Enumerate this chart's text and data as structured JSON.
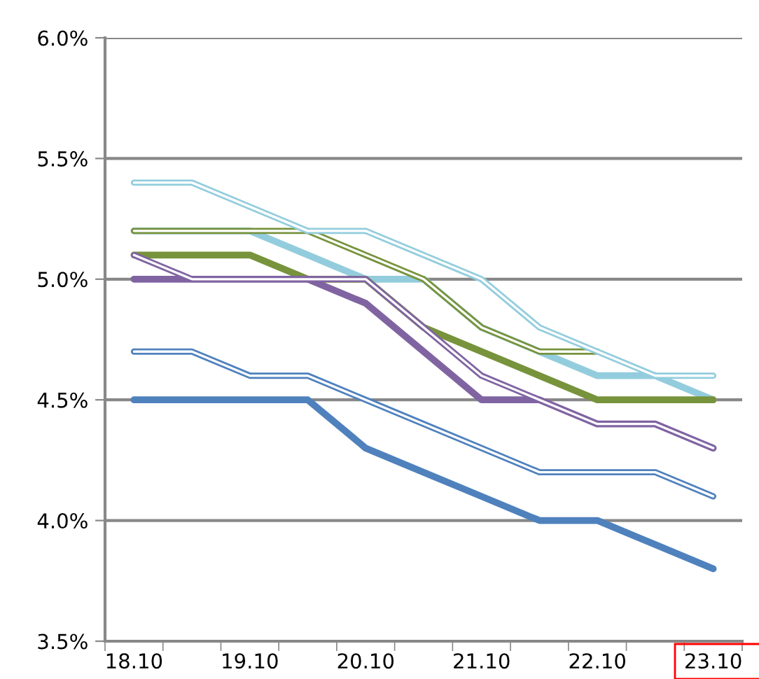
{
  "chart_data": {
    "type": "line",
    "categories": [
      "18.10",
      null,
      "19.10",
      null,
      "20.10",
      null,
      "21.10",
      null,
      "22.10",
      null,
      "23.10"
    ],
    "series": [
      {
        "color": "#93cddd",
        "values": [
          5.4,
          5.4,
          5.3,
          5.2,
          5.2,
          5.1,
          5.0,
          4.8,
          4.7,
          4.6,
          4.6
        ]
      },
      {
        "color": "#77933c",
        "values": [
          5.2,
          5.2,
          5.2,
          5.2,
          5.1,
          5.0,
          4.8,
          4.7,
          4.7,
          null,
          null
        ]
      },
      {
        "color": "#8064a2",
        "values": [
          5.1,
          5.0,
          5.0,
          5.0,
          5.0,
          4.8,
          4.6,
          4.5,
          4.4,
          4.4,
          4.3
        ]
      },
      {
        "color": "#4f81bd",
        "values": [
          4.7,
          4.7,
          4.6,
          4.6,
          4.5,
          4.4,
          4.3,
          4.2,
          4.2,
          4.2,
          4.1
        ]
      },
      {
        "color": "#93cddd",
        "values": [
          5.2,
          5.2,
          5.2,
          5.1,
          5.0,
          5.0,
          4.8,
          4.7,
          4.6,
          4.6,
          4.5
        ]
      },
      {
        "color": "#77933c",
        "values": [
          5.1,
          5.1,
          5.1,
          5.0,
          5.0,
          4.8,
          4.7,
          4.6,
          4.5,
          4.5,
          4.5
        ]
      },
      {
        "color": "#8064a2",
        "values": [
          5.0,
          5.0,
          5.0,
          5.0,
          4.9,
          4.7,
          4.5,
          4.5,
          4.4,
          4.4,
          4.3
        ]
      },
      {
        "color": "#4f81bd",
        "values": [
          4.5,
          4.5,
          4.5,
          4.5,
          4.3,
          4.2,
          4.1,
          4.0,
          4.0,
          3.9,
          3.8
        ]
      }
    ],
    "ylim": [
      3.5,
      6.0
    ],
    "yticks": [
      {
        "value": 3.5,
        "label": "3.5%"
      },
      {
        "value": 4.0,
        "label": "4.0%"
      },
      {
        "value": 4.5,
        "label": "4.5%"
      },
      {
        "value": 5.0,
        "label": "5.0%"
      },
      {
        "value": 5.5,
        "label": "5.5%"
      },
      {
        "value": 6.0,
        "label": "6.0%"
      }
    ],
    "grid": "y",
    "legend": false,
    "marker": "none",
    "line_style": "solid"
  }
}
